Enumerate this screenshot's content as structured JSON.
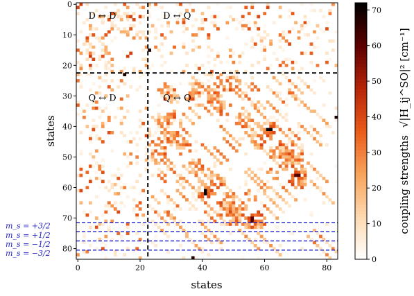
{
  "chart_data": {
    "type": "heatmap",
    "xlabel": "states",
    "ylabel": "states",
    "n_states": 84,
    "x_ticks": [
      0,
      20,
      40,
      60,
      80
    ],
    "y_ticks": [
      0,
      10,
      20,
      30,
      40,
      50,
      60,
      70,
      80
    ],
    "y_axis_inverted": true,
    "colorbar": {
      "label": "coupling strengths",
      "label_formula": "√|H_ij^SO|² [cm⁻¹]",
      "range": [
        0,
        72
      ],
      "ticks": [
        0,
        10,
        20,
        30,
        40,
        50,
        60,
        70
      ],
      "colormap": "gist_heat_r",
      "colors": [
        "#ffffff",
        "#fdd9b0",
        "#f8a35a",
        "#ea5a19",
        "#b52508",
        "#5c0000",
        "#000000"
      ]
    },
    "block_boundary_state": 23,
    "region_labels": [
      {
        "text": "D ↔ D",
        "x": 3,
        "y": 2
      },
      {
        "text": "D ↔ Q",
        "x": 27,
        "y": 2
      },
      {
        "text": "Q ↔ D",
        "x": 3,
        "y": 29
      },
      {
        "text": "Q ↔ Q",
        "x": 27,
        "y": 29
      }
    ],
    "ms_boundaries": [
      72,
      75,
      78,
      81
    ],
    "ms_labels": [
      {
        "text": "m_s = +3/2",
        "state": 73
      },
      {
        "text": "m_s = +1/2",
        "state": 76
      },
      {
        "text": "m_s = −1/2",
        "state": 79
      },
      {
        "text": "m_s = −3/2",
        "state": 82
      }
    ],
    "notable_values": [
      {
        "row": 23,
        "col": 15,
        "value": 68
      },
      {
        "row": 41,
        "col": 62,
        "value": 72
      },
      {
        "row": 61,
        "col": 41,
        "value": 71
      },
      {
        "row": 83,
        "col": 37,
        "value": 68
      },
      {
        "row": 70,
        "col": 56,
        "value": 60
      },
      {
        "row": 56,
        "col": 71,
        "value": 62
      }
    ]
  }
}
